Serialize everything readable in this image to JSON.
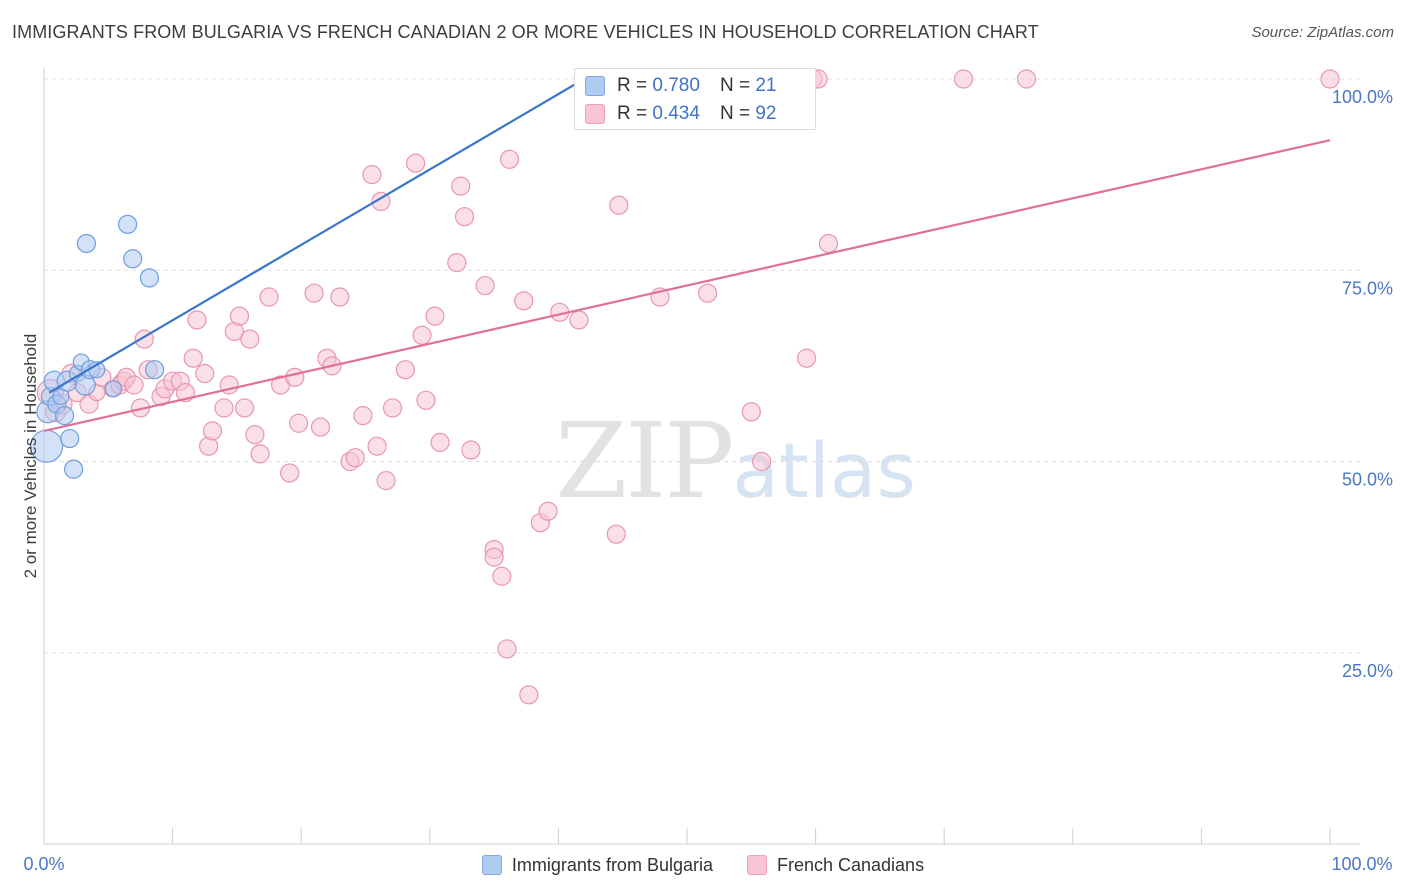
{
  "header": {
    "title": "IMMIGRANTS FROM BULGARIA VS FRENCH CANADIAN 2 OR MORE VEHICLES IN HOUSEHOLD CORRELATION CHART",
    "source": "Source: ZipAtlas.com"
  },
  "watermark": {
    "zip": "ZIP",
    "atlas": "atlas"
  },
  "stats": {
    "bulgaria": {
      "r_label": "R = ",
      "r_value": "0.780",
      "n_label": "N = ",
      "n_value": "21"
    },
    "french": {
      "r_label": "R = ",
      "r_value": "0.434",
      "n_label": "N = ",
      "n_value": "92"
    }
  },
  "legend": {
    "bulgaria": "Immigrants from Bulgaria",
    "french": "French Canadians"
  },
  "colors": {
    "blue_fill": "#aecbf2",
    "blue_stroke": "#6f9fdc",
    "blue_line": "#3a77cc",
    "pink_fill": "#f8c5d4",
    "pink_stroke": "#e996b0",
    "pink_line": "#e0709a",
    "grid": "#dddddd",
    "axis_label": "#4a78c4"
  },
  "chart_data": {
    "type": "scatter",
    "title": "IMMIGRANTS FROM BULGARIA VS FRENCH CANADIAN 2 OR MORE VEHICLES IN HOUSEHOLD CORRELATION CHART",
    "xlabel": "",
    "ylabel": "2 or more Vehicles in Household",
    "xlim": [
      0,
      100
    ],
    "ylim": [
      0,
      100
    ],
    "x_tick_labels": [
      "0.0%",
      "100.0%"
    ],
    "y_ticks": [
      25,
      50,
      75,
      100
    ],
    "y_tick_labels": [
      "25.0%",
      "50.0%",
      "75.0%",
      "100.0%"
    ],
    "grid": true,
    "legend_position": "bottom",
    "series": [
      {
        "name": "Immigrants from Bulgaria",
        "color": "#aecbf2",
        "r": 0.78,
        "n": 21,
        "trendline": [
          [
            0.4,
            59.0
          ],
          [
            42.0,
            100.0
          ]
        ],
        "points": [
          [
            0.2,
            52.0,
            16
          ],
          [
            0.3,
            56.5,
            11
          ],
          [
            0.5,
            58.5,
            9
          ],
          [
            0.8,
            60.5,
            10
          ],
          [
            1.0,
            57.5,
            9
          ],
          [
            1.3,
            58.5,
            8
          ],
          [
            1.6,
            56.0,
            9
          ],
          [
            1.8,
            60.5,
            10
          ],
          [
            2.0,
            53.0,
            9
          ],
          [
            2.3,
            49.0,
            9
          ],
          [
            2.6,
            61.5,
            8
          ],
          [
            2.9,
            63.0,
            8
          ],
          [
            3.2,
            60.0,
            10
          ],
          [
            3.6,
            62.0,
            9
          ],
          [
            3.3,
            78.5,
            9
          ],
          [
            4.1,
            62.0,
            8
          ],
          [
            5.4,
            59.5,
            8
          ],
          [
            6.5,
            81.0,
            9
          ],
          [
            6.9,
            76.5,
            9
          ],
          [
            8.2,
            74.0,
            9
          ],
          [
            8.6,
            62.0,
            9
          ]
        ]
      },
      {
        "name": "French Canadians",
        "color": "#f8c5d4",
        "r": 0.434,
        "n": 92,
        "trendline": [
          [
            0.0,
            54.0
          ],
          [
            100.0,
            92.0
          ]
        ],
        "points": [
          [
            0.5,
            59.0,
            13
          ],
          [
            0.9,
            56.5,
            10
          ],
          [
            1.4,
            57.5,
            10
          ],
          [
            2.1,
            61.5,
            9
          ],
          [
            2.6,
            59.0,
            9
          ],
          [
            3.5,
            57.5,
            9
          ],
          [
            4.1,
            59.0,
            8
          ],
          [
            4.5,
            61.0,
            9
          ],
          [
            5.3,
            59.5,
            8
          ],
          [
            5.9,
            60.0,
            9
          ],
          [
            6.2,
            60.5,
            9
          ],
          [
            6.4,
            61.0,
            9
          ],
          [
            7.0,
            60.0,
            9
          ],
          [
            7.5,
            57.0,
            9
          ],
          [
            8.1,
            62.0,
            9
          ],
          [
            7.8,
            66.0,
            9
          ],
          [
            9.1,
            58.5,
            9
          ],
          [
            9.4,
            59.5,
            9
          ],
          [
            10.0,
            60.5,
            9
          ],
          [
            10.6,
            60.5,
            9
          ],
          [
            11.0,
            59.0,
            9
          ],
          [
            11.6,
            63.5,
            9
          ],
          [
            11.9,
            68.5,
            9
          ],
          [
            12.5,
            61.5,
            9
          ],
          [
            12.8,
            52.0,
            9
          ],
          [
            13.1,
            54.0,
            9
          ],
          [
            14.0,
            57.0,
            9
          ],
          [
            14.4,
            60.0,
            9
          ],
          [
            14.8,
            67.0,
            9
          ],
          [
            15.2,
            69.0,
            9
          ],
          [
            15.6,
            57.0,
            9
          ],
          [
            16.0,
            66.0,
            9
          ],
          [
            16.4,
            53.5,
            9
          ],
          [
            16.8,
            51.0,
            9
          ],
          [
            17.5,
            71.5,
            9
          ],
          [
            18.4,
            60.0,
            9
          ],
          [
            19.1,
            48.5,
            9
          ],
          [
            19.5,
            61.0,
            9
          ],
          [
            19.8,
            55.0,
            9
          ],
          [
            21.0,
            72.0,
            9
          ],
          [
            21.5,
            54.5,
            9
          ],
          [
            22.0,
            63.5,
            9
          ],
          [
            22.4,
            62.5,
            9
          ],
          [
            23.0,
            71.5,
            9
          ],
          [
            23.8,
            50.0,
            9
          ],
          [
            24.2,
            50.5,
            9
          ],
          [
            24.8,
            56.0,
            9
          ],
          [
            25.5,
            87.5,
            9
          ],
          [
            25.9,
            52.0,
            9
          ],
          [
            26.2,
            84.0,
            9
          ],
          [
            26.6,
            47.5,
            9
          ],
          [
            27.1,
            57.0,
            9
          ],
          [
            28.1,
            62.0,
            9
          ],
          [
            28.9,
            89.0,
            9
          ],
          [
            29.4,
            66.5,
            9
          ],
          [
            29.7,
            58.0,
            9
          ],
          [
            30.4,
            69.0,
            9
          ],
          [
            30.8,
            52.5,
            9
          ],
          [
            32.1,
            76.0,
            9
          ],
          [
            32.4,
            86.0,
            9
          ],
          [
            32.7,
            82.0,
            9
          ],
          [
            33.2,
            51.5,
            9
          ],
          [
            34.3,
            73.0,
            9
          ],
          [
            35.0,
            38.5,
            9
          ],
          [
            35.0,
            37.5,
            9
          ],
          [
            35.6,
            35.0,
            9
          ],
          [
            36.0,
            25.5,
            9
          ],
          [
            36.2,
            89.5,
            9
          ],
          [
            37.3,
            71.0,
            9
          ],
          [
            37.7,
            19.5,
            9
          ],
          [
            38.6,
            42.0,
            9
          ],
          [
            39.2,
            43.5,
            9
          ],
          [
            40.1,
            69.5,
            9
          ],
          [
            41.6,
            68.5,
            9
          ],
          [
            44.5,
            40.5,
            9
          ],
          [
            44.7,
            83.5,
            9
          ],
          [
            46.0,
            100.0,
            9
          ],
          [
            47.2,
            100.0,
            9
          ],
          [
            47.9,
            71.5,
            9
          ],
          [
            48.1,
            100.0,
            9
          ],
          [
            50.4,
            100.0,
            9
          ],
          [
            51.6,
            72.0,
            9
          ],
          [
            55.0,
            56.5,
            9
          ],
          [
            55.8,
            50.0,
            9
          ],
          [
            58.0,
            100.0,
            9
          ],
          [
            59.3,
            63.5,
            9
          ],
          [
            59.8,
            100.0,
            9
          ],
          [
            60.2,
            100.0,
            9
          ],
          [
            61.0,
            78.5,
            9
          ],
          [
            71.5,
            100.0,
            9
          ],
          [
            76.4,
            100.0,
            9
          ],
          [
            100.0,
            100.0,
            9
          ]
        ]
      }
    ]
  }
}
